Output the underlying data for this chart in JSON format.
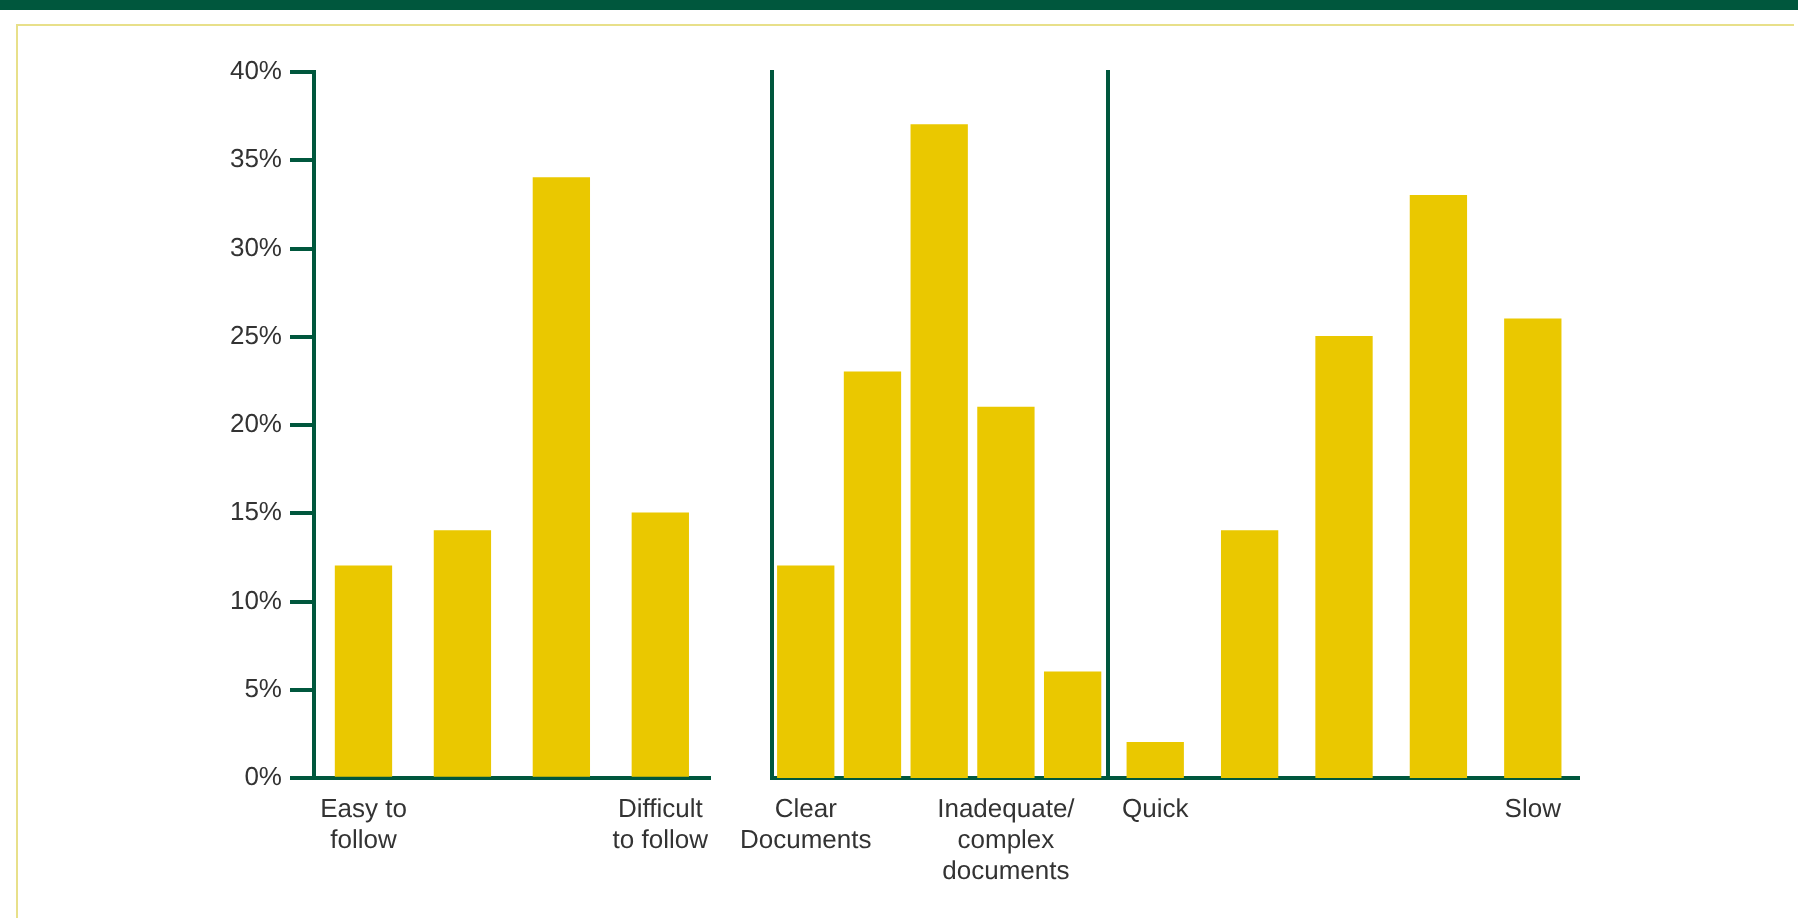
{
  "chart_data": [
    {
      "type": "bar",
      "categories": [
        "Easy to follow",
        null,
        null,
        "Difficult to follow"
      ],
      "values": [
        12,
        14,
        34,
        15
      ],
      "color": "#eac800",
      "ylim": [
        0,
        40
      ],
      "yticks": [
        {
          "value": 0,
          "label": "0%"
        },
        {
          "value": 5,
          "label": "5%"
        },
        {
          "value": 10,
          "label": "10%"
        },
        {
          "value": 15,
          "label": "15%"
        },
        {
          "value": 20,
          "label": "20%"
        },
        {
          "value": 25,
          "label": "25%"
        },
        {
          "value": 30,
          "label": "30%"
        },
        {
          "value": 35,
          "label": "35%"
        },
        {
          "value": 40,
          "label": "40%"
        }
      ],
      "grid": false,
      "legend": false
    },
    {
      "type": "bar",
      "categories": [
        "Clear Documents",
        null,
        null,
        "Inadequate/complex documents",
        null
      ],
      "values": [
        12,
        23,
        37,
        21,
        6
      ],
      "color": "#eac800",
      "ylim": [
        0,
        40
      ],
      "tick_labels": "x",
      "grid": false,
      "legend": false
    },
    {
      "type": "bar",
      "categories": [
        "Quick",
        null,
        null,
        null,
        "Slow"
      ],
      "values": [
        2,
        14,
        25,
        33,
        26
      ],
      "color": "#eac800",
      "ylim": [
        0,
        40
      ],
      "tick_labels": "x",
      "grid": false,
      "legend": false
    }
  ]
}
